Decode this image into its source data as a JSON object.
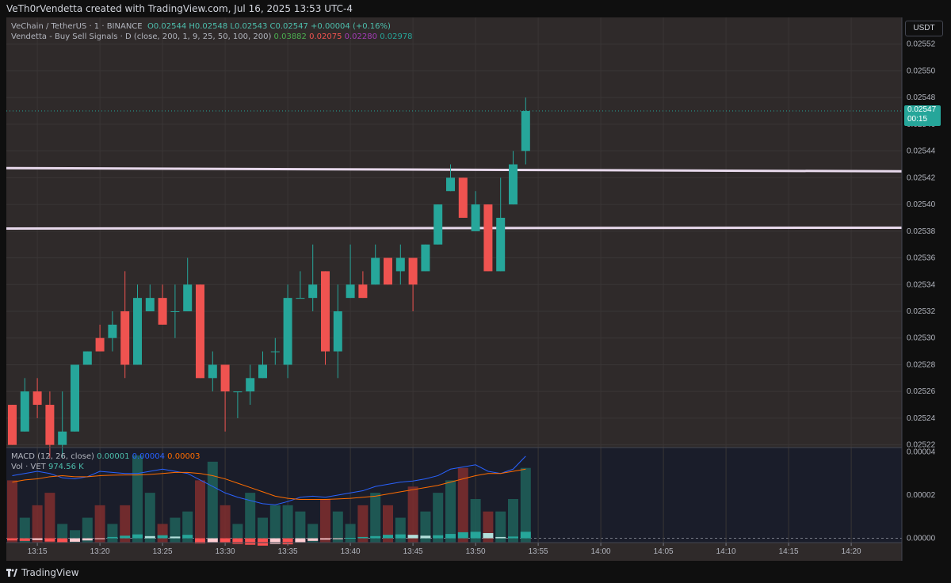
{
  "header": {
    "credit": "VeTh0rVendetta created with TradingView.com, Jul 16, 2025 13:53 UTC-4"
  },
  "footer": {
    "brand": "TradingView"
  },
  "legend": {
    "symbol": "VeChain / TetherUS · 1 · BINANCE",
    "ohlc": "O0.02544 H0.02548 L0.02543 C0.02547",
    "change": "+0.00004 (+0.16%)",
    "indicator": "Vendetta - Buy Sell Signals · D (close, 200, 1, 9, 25, 50, 100, 200)",
    "indicator_values": [
      "0.03882",
      "0.02075",
      "0.02280",
      "0.02978"
    ],
    "macd_label": "MACD (12, 26, close)",
    "macd_values": [
      "0.00001",
      "0.00004",
      "0.00003"
    ],
    "volume_label": "Vol · VET",
    "volume_value": "974.56 K"
  },
  "currency": "USDT",
  "last_price": {
    "price": "0.02547",
    "countdown": "00:15"
  },
  "colors": {
    "up": "#26a69a",
    "down": "#ef5350",
    "bg": "#2f2a2a",
    "grid": "#3a3636",
    "level_line": "#e8d9ec",
    "macd": "#2962ff",
    "signal": "#ff6d00"
  },
  "chart_data": [
    {
      "type": "candlestick",
      "title": "VeChain / TetherUS · 1 · BINANCE",
      "interval": "1m",
      "price_ticks": [
        "0.02552",
        "0.02550",
        "0.02548",
        "0.02546",
        "0.02544",
        "0.02542",
        "0.02540",
        "0.02538",
        "0.02536",
        "0.02534",
        "0.02532",
        "0.02530",
        "0.02528",
        "0.02526",
        "0.02524",
        "0.02522"
      ],
      "ylim": [
        0.025218,
        0.02554
      ],
      "time_ticks": [
        "13:15",
        "13:20",
        "13:25",
        "13:30",
        "13:35",
        "13:40",
        "13:45",
        "13:50",
        "13:55",
        "14:00",
        "14:05",
        "14:10",
        "14:15",
        "14:20"
      ],
      "start_time": "13:13",
      "candles": [
        [
          0.02525,
          0.02525,
          0.02522,
          0.02522
        ],
        [
          0.02523,
          0.02527,
          0.02523,
          0.02526
        ],
        [
          0.02526,
          0.02527,
          0.02524,
          0.02525
        ],
        [
          0.02525,
          0.02526,
          0.02521,
          0.02522
        ],
        [
          0.02522,
          0.02526,
          0.02521,
          0.02523
        ],
        [
          0.02523,
          0.02528,
          0.02523,
          0.02528
        ],
        [
          0.02528,
          0.02529,
          0.02528,
          0.02529
        ],
        [
          0.0253,
          0.02531,
          0.02529,
          0.02529
        ],
        [
          0.0253,
          0.02532,
          0.02529,
          0.02531
        ],
        [
          0.02532,
          0.02535,
          0.02527,
          0.02528
        ],
        [
          0.02528,
          0.02534,
          0.02528,
          0.02533
        ],
        [
          0.02532,
          0.02534,
          0.02532,
          0.02533
        ],
        [
          0.02533,
          0.02534,
          0.02531,
          0.02531
        ],
        [
          0.02532,
          0.02534,
          0.0253,
          0.02532
        ],
        [
          0.02532,
          0.02536,
          0.02532,
          0.02534
        ],
        [
          0.02534,
          0.02534,
          0.02527,
          0.02527
        ],
        [
          0.02527,
          0.02529,
          0.02526,
          0.02528
        ],
        [
          0.02528,
          0.02528,
          0.02523,
          0.02526
        ],
        [
          0.02526,
          0.02526,
          0.02524,
          0.02526
        ],
        [
          0.02526,
          0.02528,
          0.02525,
          0.02527
        ],
        [
          0.02527,
          0.02529,
          0.02527,
          0.02528
        ],
        [
          0.02529,
          0.0253,
          0.02528,
          0.02529
        ],
        [
          0.02528,
          0.02534,
          0.02527,
          0.02533
        ],
        [
          0.02533,
          0.02535,
          0.02533,
          0.02533
        ],
        [
          0.02533,
          0.02537,
          0.02532,
          0.02534
        ],
        [
          0.02535,
          0.02535,
          0.02528,
          0.02529
        ],
        [
          0.02529,
          0.02534,
          0.02527,
          0.02532
        ],
        [
          0.02533,
          0.02537,
          0.02533,
          0.02534
        ],
        [
          0.02534,
          0.02535,
          0.02533,
          0.02533
        ],
        [
          0.02534,
          0.02537,
          0.02534,
          0.02536
        ],
        [
          0.02536,
          0.02536,
          0.02534,
          0.02534
        ],
        [
          0.02535,
          0.02537,
          0.02534,
          0.02536
        ],
        [
          0.02536,
          0.02536,
          0.02532,
          0.02534
        ],
        [
          0.02535,
          0.02537,
          0.02535,
          0.02537
        ],
        [
          0.02537,
          0.0254,
          0.02537,
          0.0254
        ],
        [
          0.02541,
          0.02543,
          0.02541,
          0.02542
        ],
        [
          0.02542,
          0.02542,
          0.02539,
          0.02539
        ],
        [
          0.02538,
          0.02541,
          0.02538,
          0.0254
        ],
        [
          0.0254,
          0.0254,
          0.02535,
          0.02535
        ],
        [
          0.02535,
          0.02542,
          0.02535,
          0.02539
        ],
        [
          0.0254,
          0.02544,
          0.0254,
          0.02543
        ],
        [
          0.02544,
          0.02548,
          0.02543,
          0.02547
        ]
      ],
      "levels": [
        0.025426,
        0.025382
      ]
    },
    {
      "type": "line",
      "title": "MACD (12, 26, close)",
      "ylim": [
        -2e-06,
        4.2e-05
      ],
      "y_ticks": [
        "0.00004",
        "0.00002",
        "0.00000"
      ],
      "series": [
        {
          "name": "MACD",
          "values": [
            2.9e-05,
            3e-05,
            3.1e-05,
            3e-05,
            2.8e-05,
            2.75e-05,
            2.85e-05,
            3.1e-05,
            3.05e-05,
            3e-05,
            3e-05,
            3.1e-05,
            3.2e-05,
            3.1e-05,
            3e-05,
            2.7e-05,
            2.4e-05,
            2.1e-05,
            1.9e-05,
            1.75e-05,
            1.6e-05,
            1.55e-05,
            1.7e-05,
            1.9e-05,
            1.95e-05,
            1.9e-05,
            2e-05,
            2.1e-05,
            2.2e-05,
            2.4e-05,
            2.5e-05,
            2.6e-05,
            2.65e-05,
            2.75e-05,
            2.9e-05,
            3.2e-05,
            3.3e-05,
            3.4e-05,
            3.1e-05,
            3e-05,
            3.2e-05,
            3.8e-05
          ]
        },
        {
          "name": "Signal",
          "values": [
            2.6e-05,
            2.7e-05,
            2.75e-05,
            2.85e-05,
            2.9e-05,
            2.85e-05,
            2.85e-05,
            2.9e-05,
            2.92e-05,
            2.93e-05,
            2.93e-05,
            2.96e-05,
            3e-05,
            3.05e-05,
            3.05e-05,
            3e-05,
            2.9e-05,
            2.75e-05,
            2.55e-05,
            2.35e-05,
            2.15e-05,
            1.95e-05,
            1.85e-05,
            1.8e-05,
            1.8e-05,
            1.8e-05,
            1.82e-05,
            1.85e-05,
            1.9e-05,
            1.95e-05,
            2.05e-05,
            2.15e-05,
            2.25e-05,
            2.35e-05,
            2.45e-05,
            2.6e-05,
            2.75e-05,
            2.9e-05,
            3e-05,
            3e-05,
            3.1e-05,
            3.2e-05
          ]
        },
        {
          "name": "Histogram",
          "values": [
            -1e-06,
            -1.2e-06,
            -8e-07,
            -1.5e-06,
            -1.8e-06,
            -1.6e-06,
            -1e-06,
            -4e-07,
            6e-07,
            1.2e-06,
            1.8e-06,
            1e-06,
            1.4e-06,
            8e-07,
            1.6e-06,
            -2.4e-06,
            -1.8e-06,
            -2.2e-06,
            -2.6e-06,
            -3e-06,
            -3.4e-06,
            -2.6e-06,
            -2.8e-06,
            -1.8e-06,
            -1.2e-06,
            -6e-07,
            -4e-07,
            2e-07,
            6e-07,
            1e-06,
            1.6e-06,
            1.8e-06,
            1.6e-06,
            1.2e-06,
            1.4e-06,
            2e-06,
            2.8e-06,
            3e-06,
            2.4e-06,
            6e-07,
            8e-07,
            3e-06
          ]
        }
      ],
      "volume": [
        10,
        4,
        6,
        8,
        3,
        2,
        4,
        6,
        3,
        6,
        14,
        8,
        3,
        4,
        5,
        10,
        13,
        6,
        3,
        8,
        4,
        6,
        6,
        5,
        3,
        7,
        5,
        3,
        6,
        8,
        6,
        4,
        9,
        5,
        8,
        10,
        12,
        7,
        5,
        5,
        7,
        12
      ]
    }
  ]
}
